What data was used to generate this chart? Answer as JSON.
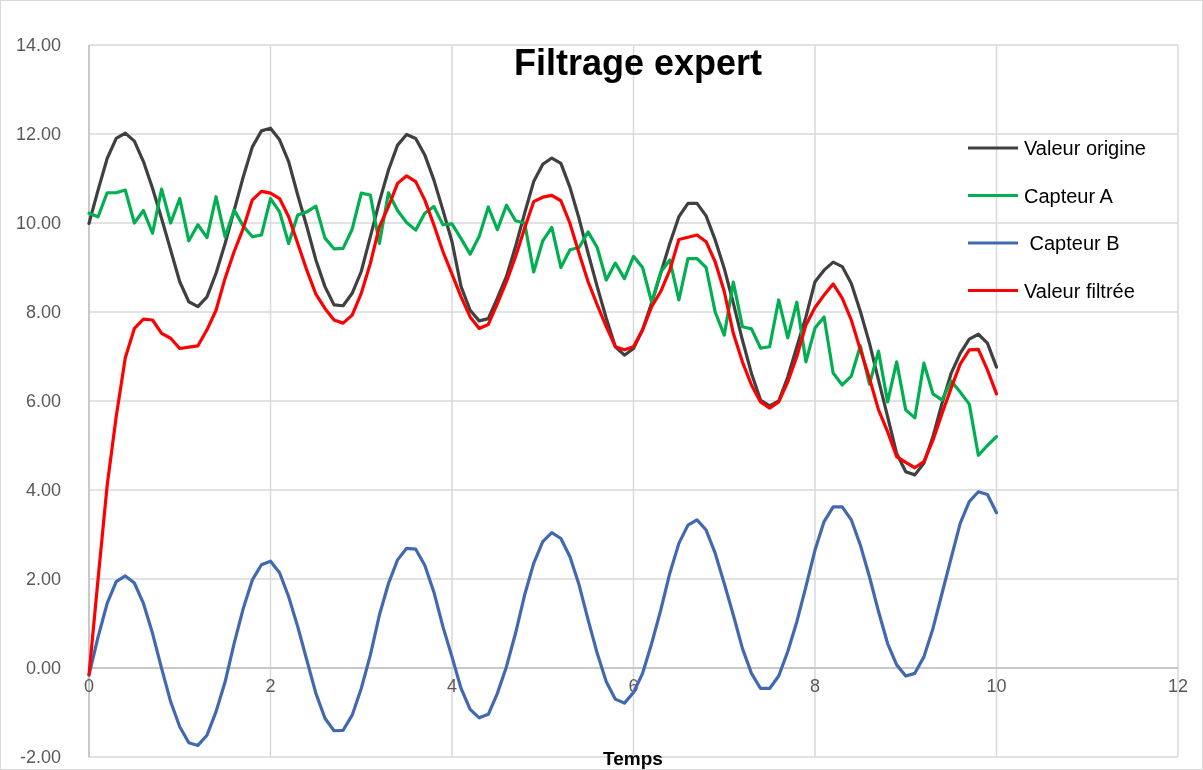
{
  "chart_data": {
    "type": "line",
    "title": "Filtrage expert",
    "xlabel": "Temps",
    "x": [
      0,
      0.1,
      0.2,
      0.3,
      0.4,
      0.5,
      0.6,
      0.7,
      0.8,
      0.9,
      1,
      1.1,
      1.2,
      1.3,
      1.4,
      1.5,
      1.6,
      1.7,
      1.8,
      1.9,
      2,
      2.1,
      2.2,
      2.3,
      2.4,
      2.5,
      2.6,
      2.7,
      2.8,
      2.9,
      3,
      3.1,
      3.2,
      3.3,
      3.4,
      3.5,
      3.6,
      3.7,
      3.8,
      3.9,
      4,
      4.1,
      4.2,
      4.3,
      4.4,
      4.5,
      4.6,
      4.7,
      4.8,
      4.9,
      5,
      5.1,
      5.2,
      5.3,
      5.4,
      5.5,
      5.6,
      5.7,
      5.8,
      5.9,
      6,
      6.1,
      6.2,
      6.3,
      6.4,
      6.5,
      6.6,
      6.7,
      6.8,
      6.9,
      7,
      7.1,
      7.2,
      7.3,
      7.4,
      7.5,
      7.6,
      7.7,
      7.8,
      7.9,
      8,
      8.1,
      8.2,
      8.3,
      8.4,
      8.5,
      8.6,
      8.7,
      8.8,
      8.9,
      9,
      9.1,
      9.2,
      9.3,
      9.4,
      9.5,
      9.6,
      9.7,
      9.8,
      9.9,
      10
    ],
    "series": [
      {
        "name": "Valeur origine",
        "color": "#404040",
        "values": [
          9.99,
          10.74,
          11.45,
          11.9,
          12.02,
          11.84,
          11.38,
          10.78,
          10.1,
          9.39,
          8.68,
          8.23,
          8.12,
          8.34,
          8.87,
          9.54,
          10.29,
          11.04,
          11.71,
          12.07,
          12.13,
          11.87,
          11.38,
          10.63,
          9.92,
          9.17,
          8.57,
          8.16,
          8.14,
          8.42,
          8.91,
          9.69,
          10.48,
          11.19,
          11.75,
          11.99,
          11.9,
          11.53,
          10.97,
          10.29,
          9.58,
          8.57,
          8.04,
          7.8,
          7.85,
          8.31,
          8.8,
          9.47,
          10.22,
          10.93,
          11.32,
          11.46,
          11.34,
          10.8,
          10.1,
          9.32,
          8.57,
          7.86,
          7.22,
          7.03,
          7.18,
          7.6,
          8.2,
          8.87,
          9.54,
          10.14,
          10.44,
          10.44,
          10.16,
          9.62,
          8.98,
          8.2,
          7.37,
          6.62,
          6.02,
          5.89,
          6.0,
          6.54,
          7.22,
          7.89,
          8.68,
          8.94,
          9.12,
          9.02,
          8.64,
          8.01,
          7.3,
          6.47,
          5.65,
          4.82,
          4.41,
          4.34,
          4.6,
          5.2,
          5.95,
          6.62,
          7.07,
          7.39,
          7.5,
          7.3,
          6.76
        ]
      },
      {
        "name": "Capteur A",
        "color": "#00b050",
        "values": [
          10.22,
          10.14,
          10.68,
          10.68,
          10.74,
          10.0,
          10.28,
          9.77,
          10.76,
          10.0,
          10.55,
          9.6,
          9.96,
          9.67,
          10.59,
          9.69,
          10.29,
          9.93,
          9.69,
          9.73,
          10.55,
          10.25,
          9.54,
          10.18,
          10.25,
          10.38,
          9.66,
          9.42,
          9.43,
          9.86,
          10.67,
          10.63,
          9.54,
          10.68,
          10.28,
          10.01,
          9.84,
          10.22,
          10.37,
          9.96,
          9.98,
          9.65,
          9.3,
          9.7,
          10.36,
          9.85,
          10.4,
          10.05,
          10.0,
          8.9,
          9.6,
          9.9,
          9.0,
          9.4,
          9.45,
          9.8,
          9.45,
          8.72,
          9.1,
          8.75,
          9.25,
          9.0,
          8.22,
          8.9,
          9.17,
          8.27,
          9.2,
          9.2,
          9.0,
          8.0,
          7.48,
          8.67,
          7.67,
          7.62,
          7.19,
          7.22,
          8.27,
          7.42,
          8.22,
          6.88,
          7.64,
          7.89,
          6.63,
          6.36,
          6.56,
          7.24,
          6.38,
          7.12,
          5.98,
          6.88,
          5.8,
          5.62,
          6.85,
          6.16,
          6.02,
          6.45,
          6.2,
          5.93,
          4.78,
          5.0,
          5.2
        ]
      },
      {
        "name": " Capteur B",
        "color": "#4169b0",
        "values": [
          -0.16,
          0.7,
          1.45,
          1.94,
          2.07,
          1.91,
          1.45,
          0.78,
          -0.01,
          -0.76,
          -1.32,
          -1.68,
          -1.74,
          -1.51,
          -0.98,
          -0.31,
          0.56,
          1.34,
          1.98,
          2.32,
          2.4,
          2.14,
          1.6,
          0.93,
          0.18,
          -0.57,
          -1.13,
          -1.41,
          -1.4,
          -1.06,
          -0.46,
          0.29,
          1.19,
          1.9,
          2.43,
          2.69,
          2.67,
          2.31,
          1.71,
          0.93,
          0.25,
          -0.46,
          -0.93,
          -1.12,
          -1.04,
          -0.57,
          0.03,
          0.78,
          1.64,
          2.35,
          2.84,
          3.04,
          2.91,
          2.5,
          1.87,
          1.08,
          0.33,
          -0.31,
          -0.7,
          -0.79,
          -0.55,
          -0.12,
          0.55,
          1.3,
          2.13,
          2.8,
          3.21,
          3.33,
          3.1,
          2.58,
          1.9,
          1.19,
          0.44,
          -0.12,
          -0.46,
          -0.46,
          -0.18,
          0.37,
          1.04,
          1.83,
          2.65,
          3.29,
          3.62,
          3.62,
          3.33,
          2.76,
          2.05,
          1.27,
          0.55,
          0.07,
          -0.18,
          -0.12,
          0.25,
          0.89,
          1.68,
          2.47,
          3.25,
          3.74,
          3.96,
          3.9,
          3.49
        ]
      },
      {
        "name": "Valeur filtrée",
        "color": "#ff0000",
        "values": [
          -0.15,
          2.0,
          4.1,
          5.65,
          6.97,
          7.63,
          7.84,
          7.82,
          7.52,
          7.41,
          7.18,
          7.21,
          7.24,
          7.6,
          8.04,
          8.76,
          9.36,
          9.88,
          10.52,
          10.71,
          10.67,
          10.55,
          10.14,
          9.54,
          8.94,
          8.4,
          8.08,
          7.82,
          7.75,
          7.93,
          8.42,
          9.09,
          9.92,
          10.37,
          10.89,
          11.06,
          10.93,
          10.52,
          9.96,
          9.36,
          8.85,
          8.34,
          7.89,
          7.63,
          7.72,
          8.19,
          8.68,
          9.24,
          9.88,
          10.48,
          10.58,
          10.62,
          10.5,
          9.99,
          9.32,
          8.68,
          8.16,
          7.67,
          7.22,
          7.15,
          7.22,
          7.6,
          8.12,
          8.46,
          8.94,
          9.63,
          9.68,
          9.73,
          9.58,
          9.13,
          8.46,
          7.52,
          6.88,
          6.36,
          5.98,
          5.84,
          5.98,
          6.43,
          7.0,
          7.71,
          8.1,
          8.38,
          8.63,
          8.31,
          7.82,
          7.15,
          6.51,
          5.8,
          5.31,
          4.75,
          4.62,
          4.5,
          4.64,
          5.12,
          5.72,
          6.29,
          6.83,
          7.15,
          7.16,
          6.7,
          6.16
        ]
      }
    ],
    "xlim": [
      0,
      12
    ],
    "xticks": [
      0,
      2,
      4,
      6,
      8,
      10,
      12
    ],
    "ylim": [
      -2,
      14
    ],
    "yticks": [
      {
        "value": -2,
        "label": "-2.00"
      },
      {
        "value": 0,
        "label": "0.00"
      },
      {
        "value": 2,
        "label": "2.00"
      },
      {
        "value": 4,
        "label": "4.00"
      },
      {
        "value": 6,
        "label": "6.00"
      },
      {
        "value": 8,
        "label": "8.00"
      },
      {
        "value": 10,
        "label": "10.00"
      },
      {
        "value": 12,
        "label": "12.00"
      },
      {
        "value": 14,
        "label": "14.00"
      }
    ],
    "grid": true,
    "legend": "top right",
    "marker": "none",
    "line_style": "solid"
  }
}
